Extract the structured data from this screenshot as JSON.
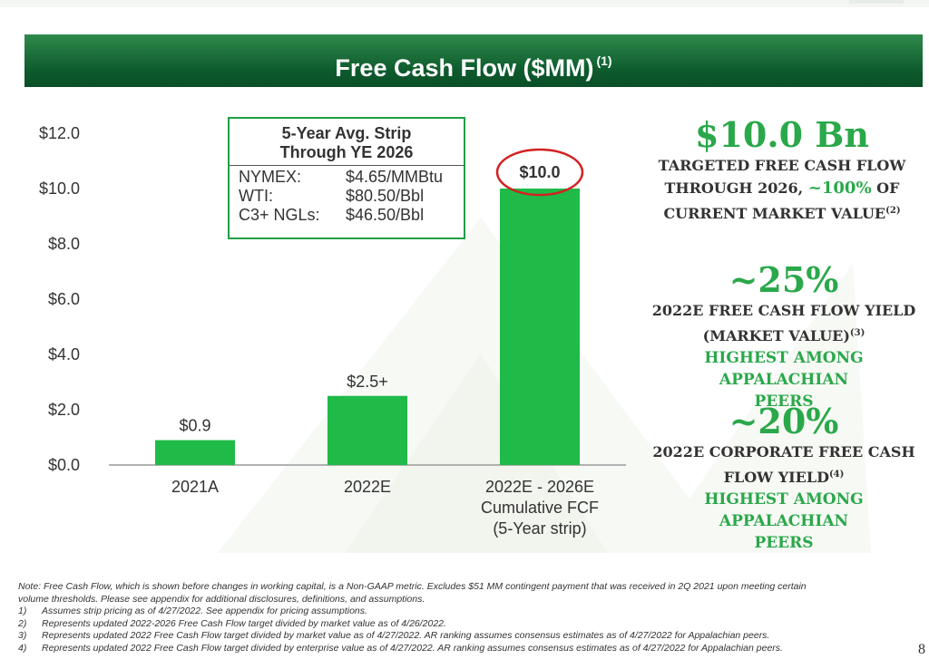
{
  "banner": {
    "title": "Free Cash Flow ($MM)",
    "sup": "(1)"
  },
  "strip_box": {
    "title_line1": "5-Year Avg. Strip",
    "title_line2": "Through YE 2026",
    "rows": [
      {
        "label": "NYMEX:",
        "value": "$4.65/MMBtu"
      },
      {
        "label": "WTI:",
        "value": "$80.50/Bbl"
      },
      {
        "label": "C3+ NGLs:",
        "value": "$46.50/Bbl"
      }
    ]
  },
  "chart_data": {
    "type": "bar",
    "categories": [
      [
        "2021A"
      ],
      [
        "2022E"
      ],
      [
        "2022E - 2026E",
        "Cumulative FCF",
        "(5-Year strip)"
      ]
    ],
    "values": [
      0.9,
      2.5,
      10.0
    ],
    "data_labels": [
      "$0.9",
      "$2.5+",
      "$10.0"
    ],
    "highlighted_index": 2,
    "ylim": [
      0,
      12
    ],
    "yticks": [
      0,
      2,
      4,
      6,
      8,
      10,
      12
    ],
    "ytick_labels": [
      "$0.0",
      "$2.0",
      "$4.0",
      "$6.0",
      "$8.0",
      "$10.0",
      "$12.0"
    ],
    "grid": false,
    "colors": {
      "bar": "#1fba48",
      "circle": "#d42020",
      "axis": "#999999"
    }
  },
  "right_side": {
    "block1": {
      "big": "$10.0 Bn",
      "line1": "TARGETED FREE CASH FLOW",
      "line2_pre": "THROUGH 2026,",
      "line2_green": "~100%",
      "line2_post": "OF",
      "line3": "CURRENT MARKET VALUE",
      "sup": "(2)"
    },
    "block2": {
      "big": "~25%",
      "line1": "2022E FREE CASH FLOW YIELD",
      "line2": "(MARKET VALUE)",
      "sup": "(3)",
      "hl1": "HIGHEST AMONG APPALACHIAN",
      "hl2": "PEERS"
    },
    "block3": {
      "big": "~20%",
      "line1": "2022E CORPORATE FREE CASH",
      "line2": "FLOW YIELD",
      "sup": "(4)",
      "hl1": "HIGHEST AMONG APPALACHIAN",
      "hl2": "PEERS"
    }
  },
  "notes": {
    "main1": "Note: Free Cash Flow, which is shown before changes in working capital, is a Non-GAAP metric. Excludes $51 MM contingent payment that was received in 2Q 2021 upon meeting certain",
    "main2": "volume thresholds. Please see appendix for additional disclosures, definitions, and assumptions.",
    "items": [
      {
        "num": "1)",
        "text": "Assumes strip pricing as of 4/27/2022.  See appendix for pricing assumptions."
      },
      {
        "num": "2)",
        "text": "Represents updated 2022-2026 Free Cash Flow target divided by market value as of 4/26/2022."
      },
      {
        "num": "3)",
        "text": "Represents updated 2022 Free Cash Flow target divided by market value as of 4/27/2022.  AR ranking assumes consensus estimates as of 4/27/2022 for Appalachian peers."
      },
      {
        "num": "4)",
        "text": "Represents updated 2022 Free Cash Flow target divided by enterprise value as of 4/27/2022.  AR ranking assumes consensus estimates as of 4/27/2022 for Appalachian peers."
      }
    ]
  },
  "page_number": "8"
}
